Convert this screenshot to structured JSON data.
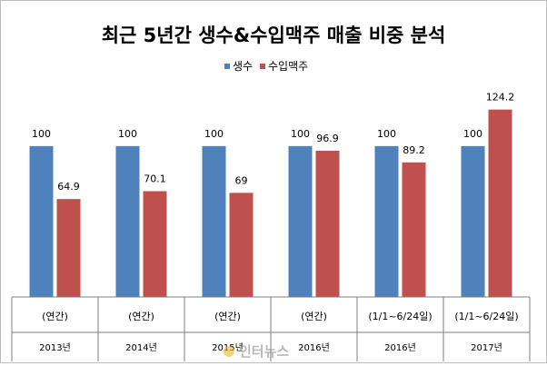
{
  "chart_data": {
    "type": "bar",
    "title": "최근 5년간 생수&수입맥주 매출 비중 분석",
    "legend_position": "top",
    "grid": false,
    "ylim": [
      0,
      130
    ],
    "categories": [
      {
        "period": "(연간)",
        "year": "2013년"
      },
      {
        "period": "(연간)",
        "year": "2014년"
      },
      {
        "period": "(연간)",
        "year": "2015년"
      },
      {
        "period": "(연간)",
        "year": "2016년"
      },
      {
        "period": "(1/1~6/24일)",
        "year": "2016년"
      },
      {
        "period": "(1/1~6/24일)",
        "year": "2017년"
      }
    ],
    "series": [
      {
        "name": "생수",
        "color": "#4f81bd",
        "values": [
          100,
          100,
          100,
          100,
          100,
          100
        ],
        "labels": [
          "100",
          "100",
          "100",
          "100",
          "100",
          "100"
        ]
      },
      {
        "name": "수입맥주",
        "color": "#c0504d",
        "values": [
          64.9,
          70.1,
          69,
          96.9,
          89.2,
          124.2
        ],
        "labels": [
          "64.9",
          "70.1",
          "69",
          "96.9",
          "89.2",
          "124.2"
        ]
      }
    ]
  },
  "watermark": "인터뉴스"
}
